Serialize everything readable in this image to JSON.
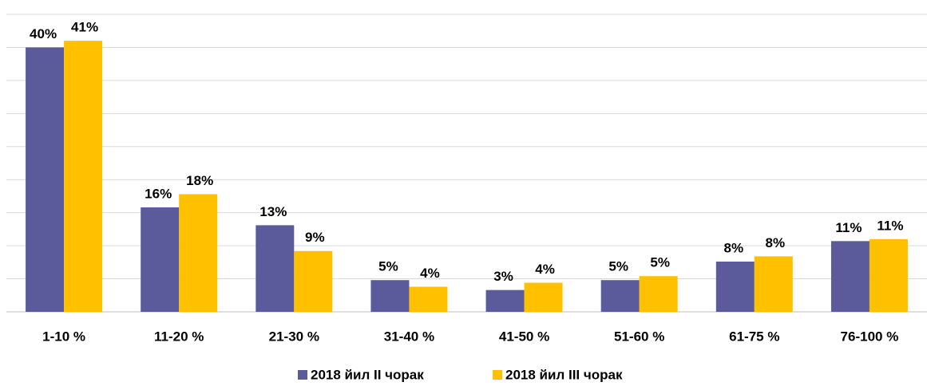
{
  "chart_data": {
    "type": "bar",
    "categories": [
      "1-10 %",
      "11-20 %",
      "21-30 %",
      "31-40 %",
      "41-50 %",
      "51-60 %",
      "61-75 %",
      "76-100 %"
    ],
    "series": [
      {
        "name": "2018 йил II чорак",
        "color": "#5b5b9b",
        "values": [
          40,
          15.8,
          13.1,
          4.8,
          3.3,
          4.8,
          7.6,
          10.7
        ],
        "value_labels": [
          "40%",
          "16%",
          "13%",
          "5%",
          "3%",
          "5%",
          "8%",
          "11%"
        ]
      },
      {
        "name": "2018 йил III чорак",
        "color": "#ffc000",
        "values": [
          41,
          17.8,
          9.2,
          3.8,
          4.4,
          5.4,
          8.4,
          11.0
        ],
        "value_labels": [
          "41%",
          "18%",
          "9%",
          "4%",
          "4%",
          "5%",
          "8%",
          "11%"
        ]
      }
    ],
    "ylim": [
      0,
      45
    ],
    "yticks": [
      0,
      5,
      10,
      15,
      20,
      25,
      30,
      35,
      40,
      45
    ],
    "grid": true,
    "legend": "bottom"
  }
}
